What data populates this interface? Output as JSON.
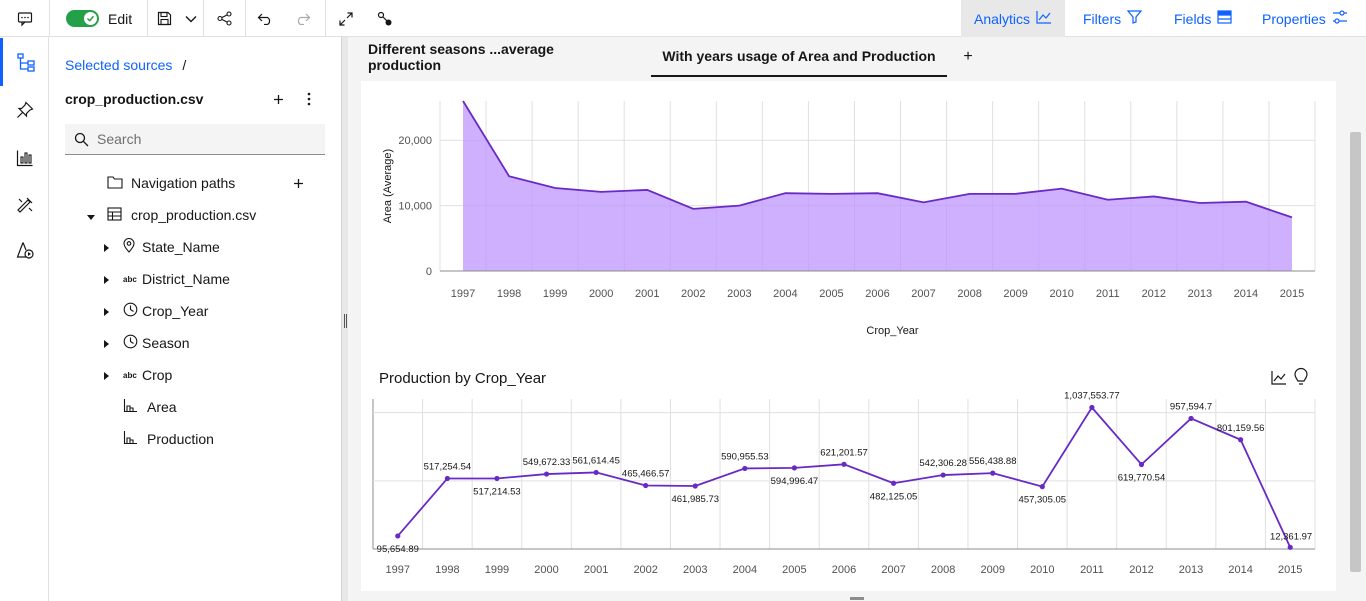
{
  "toolbar": {
    "edit_label": "Edit",
    "right_links": [
      {
        "label": "Analytics",
        "icon": "analytics-icon"
      },
      {
        "label": "Filters",
        "icon": "filter-icon"
      },
      {
        "label": "Fields",
        "icon": "fields-icon"
      },
      {
        "label": "Properties",
        "icon": "properties-icon"
      }
    ]
  },
  "panel": {
    "breadcrumb": "Selected sources",
    "breadcrumb_sep": "/",
    "source_name": "crop_production.csv",
    "search_placeholder": "Search",
    "tree": [
      {
        "label": "Navigation paths",
        "icon": "folder-icon"
      },
      {
        "label": "crop_production.csv",
        "icon": "table-icon"
      },
      {
        "label": "State_Name",
        "icon": "location-icon"
      },
      {
        "label": "District_Name",
        "icon": "abc-icon",
        "type_text": "abc"
      },
      {
        "label": "Crop_Year",
        "icon": "clock-icon"
      },
      {
        "label": "Season",
        "icon": "clock-icon"
      },
      {
        "label": "Crop",
        "icon": "abc-icon",
        "type_text": "abc"
      },
      {
        "label": "Area",
        "icon": "measure-icon"
      },
      {
        "label": "Production",
        "icon": "measure-icon"
      }
    ]
  },
  "tabs": [
    {
      "label": "Different seasons ...average production"
    },
    {
      "label": "With years usage of Area and Production"
    }
  ],
  "add_tab": "+",
  "colors": {
    "accent": "#0f62fe",
    "series": "#6929c4",
    "area_fill": "#be95ff",
    "toggle": "#24a148"
  },
  "chart_data": [
    {
      "type": "area",
      "title": "",
      "xlabel": "Crop_Year",
      "ylabel": "Area (Average)",
      "ylim": [
        0,
        26000
      ],
      "yticks": [
        "0",
        "10,000",
        "20,000"
      ],
      "categories": [
        "1997",
        "1998",
        "1999",
        "2000",
        "2001",
        "2002",
        "2003",
        "2004",
        "2005",
        "2006",
        "2007",
        "2008",
        "2009",
        "2010",
        "2011",
        "2012",
        "2013",
        "2014",
        "2015"
      ],
      "values": [
        26000,
        14500,
        12700,
        12100,
        12400,
        9500,
        10000,
        11900,
        11800,
        11900,
        10500,
        11800,
        11800,
        12600,
        10900,
        11400,
        10400,
        10600,
        8200
      ],
      "grid": true
    },
    {
      "type": "line",
      "title": "Production by Crop_Year",
      "xlabel": "",
      "ylabel": "",
      "ylim": [
        0,
        1100000
      ],
      "categories": [
        "1997",
        "1998",
        "1999",
        "2000",
        "2001",
        "2002",
        "2003",
        "2004",
        "2005",
        "2006",
        "2007",
        "2008",
        "2009",
        "2010",
        "2011",
        "2012",
        "2013",
        "2014",
        "2015"
      ],
      "values": [
        95654.89,
        517254.54,
        517214.53,
        549672.33,
        561614.45,
        465466.57,
        461985.73,
        590955.53,
        594996.47,
        621201.57,
        482125.05,
        542306.28,
        556438.88,
        457305.05,
        1037553.77,
        619770.54,
        957594.7,
        801159.56,
        12361.97
      ],
      "data_labels": [
        "95,654.89",
        "517,254.54",
        "517,214.53",
        "549,672.33",
        "561,614.45",
        "465,466.57",
        "461,985.73",
        "590,955.53",
        "594,996.47",
        "621,201.57",
        "482,125.05",
        "542,306.28",
        "556,438.88",
        "457,305.05",
        "1,037,553.77",
        "619,770.54",
        "957,594.7",
        "801,159.56",
        "12,361.97"
      ],
      "grid": true
    }
  ]
}
